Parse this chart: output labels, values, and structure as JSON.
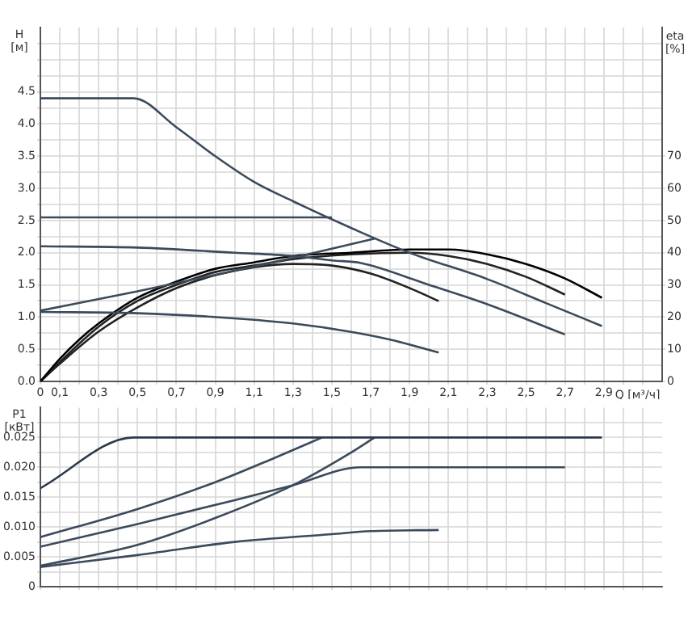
{
  "chart_data": [
    {
      "type": "line",
      "xlabel": "Q [м³/ч]",
      "ylabel": "H [м]",
      "y2label": "eta [%]",
      "grid": true,
      "legend": false,
      "xlim": [
        0,
        3.2
      ],
      "xticks": [
        {
          "value": 0,
          "label": "0"
        },
        {
          "value": 0.1,
          "label": "0,1"
        },
        {
          "value": 0.2,
          "label": null
        },
        {
          "value": 0.3,
          "label": "0,3"
        },
        {
          "value": 0.4,
          "label": null
        },
        {
          "value": 0.5,
          "label": "0,5"
        },
        {
          "value": 0.6,
          "label": null
        },
        {
          "value": 0.7,
          "label": "0,7"
        },
        {
          "value": 0.8,
          "label": null
        },
        {
          "value": 0.9,
          "label": "0,9"
        },
        {
          "value": 1.0,
          "label": null
        },
        {
          "value": 1.1,
          "label": "1,1"
        },
        {
          "value": 1.2,
          "label": null
        },
        {
          "value": 1.3,
          "label": "1,3"
        },
        {
          "value": 1.4,
          "label": null
        },
        {
          "value": 1.5,
          "label": "1,5"
        },
        {
          "value": 1.6,
          "label": null
        },
        {
          "value": 1.7,
          "label": "1,7"
        },
        {
          "value": 1.8,
          "label": null
        },
        {
          "value": 1.9,
          "label": "1,9"
        },
        {
          "value": 2.0,
          "label": null
        },
        {
          "value": 2.1,
          "label": "2,1"
        },
        {
          "value": 2.2,
          "label": null
        },
        {
          "value": 2.3,
          "label": "2,3"
        },
        {
          "value": 2.4,
          "label": null
        },
        {
          "value": 2.5,
          "label": "2,5"
        },
        {
          "value": 2.6,
          "label": null
        },
        {
          "value": 2.7,
          "label": "2,7"
        },
        {
          "value": 2.8,
          "label": null
        },
        {
          "value": 2.9,
          "label": "2,9"
        },
        {
          "value": 3.0,
          "label": null
        },
        {
          "value": 3.1,
          "label": null
        }
      ],
      "ylim": [
        0,
        5.5
      ],
      "yticks": [
        {
          "value": 0,
          "label": "0.0"
        },
        {
          "value": 0.25,
          "label": null
        },
        {
          "value": 0.5,
          "label": "0.5"
        },
        {
          "value": 0.75,
          "label": null
        },
        {
          "value": 1.0,
          "label": "1.0"
        },
        {
          "value": 1.25,
          "label": null
        },
        {
          "value": 1.5,
          "label": "1.5"
        },
        {
          "value": 1.75,
          "label": null
        },
        {
          "value": 2.0,
          "label": "2.0"
        },
        {
          "value": 2.25,
          "label": null
        },
        {
          "value": 2.5,
          "label": "2.5"
        },
        {
          "value": 2.75,
          "label": null
        },
        {
          "value": 3.0,
          "label": "3.0"
        },
        {
          "value": 3.25,
          "label": null
        },
        {
          "value": 3.5,
          "label": "3.5"
        },
        {
          "value": 3.75,
          "label": null
        },
        {
          "value": 4.0,
          "label": "4.0"
        },
        {
          "value": 4.25,
          "label": null
        },
        {
          "value": 4.5,
          "label": "4.5"
        },
        {
          "value": 4.75,
          "label": null
        },
        {
          "value": 5.0,
          "label": null
        },
        {
          "value": 5.25,
          "label": null
        }
      ],
      "y2lim": [
        0,
        110
      ],
      "y2ticks": [
        0,
        10,
        20,
        30,
        40,
        50,
        60,
        70
      ],
      "series": [
        {
          "color": "#3b4a5c",
          "x": [
            0,
            0.48,
            0.7,
            0.9,
            1.1,
            1.3,
            1.61,
            1.9,
            2.3,
            2.6,
            2.89
          ],
          "values": [
            4.4,
            4.4,
            3.95,
            3.5,
            3.1,
            2.8,
            2.37,
            2.0,
            1.59,
            1.22,
            0.86
          ]
        },
        {
          "color": "#3b4a5c",
          "x": [
            0,
            1.5
          ],
          "values": [
            2.55,
            2.55
          ]
        },
        {
          "color": "#3b4a5c",
          "x": [
            0,
            0.5,
            1.0,
            1.3,
            1.5,
            1.65,
            2.0,
            2.3,
            2.7
          ],
          "values": [
            2.1,
            2.08,
            2.0,
            1.95,
            1.88,
            1.84,
            1.5,
            1.2,
            0.73
          ]
        },
        {
          "color": "#3b4a5c",
          "x": [
            0,
            0.5,
            1.0,
            1.3,
            1.6,
            1.8,
            2.05
          ],
          "values": [
            1.08,
            1.06,
            0.98,
            0.9,
            0.77,
            0.65,
            0.45
          ]
        },
        {
          "color": "#3b4a5c",
          "x": [
            0,
            0.5,
            1.0,
            1.3,
            1.72
          ],
          "values": [
            1.1,
            1.4,
            1.72,
            1.92,
            2.22
          ]
        },
        {
          "color": "#000000",
          "axis": "y2",
          "x": [
            0,
            0.1,
            0.2,
            0.3,
            0.5,
            0.7,
            0.9,
            1.1,
            1.3,
            1.6,
            1.9,
            2.1,
            2.3,
            2.5,
            2.7,
            2.89
          ],
          "values": [
            0,
            7,
            13,
            18,
            26,
            31,
            35,
            37,
            39,
            40,
            41,
            41,
            39.5,
            36.5,
            32,
            26
          ]
        },
        {
          "color": "#222222",
          "axis": "y2",
          "x": [
            0,
            0.1,
            0.3,
            0.5,
            0.7,
            0.9,
            1.1,
            1.3,
            1.6,
            1.9,
            2.1,
            2.3,
            2.5,
            2.7
          ],
          "values": [
            0,
            6,
            17,
            25,
            30,
            34,
            36,
            38,
            39.5,
            40,
            39,
            36.5,
            32.5,
            27
          ]
        },
        {
          "color": "#222222",
          "axis": "y2",
          "x": [
            0,
            0.1,
            0.3,
            0.5,
            0.7,
            0.9,
            1.1,
            1.3,
            1.5,
            1.7,
            1.9,
            2.05
          ],
          "values": [
            0,
            5.5,
            15.5,
            23,
            29,
            33,
            35.5,
            36.5,
            36,
            33.5,
            29,
            25
          ]
        }
      ]
    },
    {
      "type": "line",
      "ylabel": "P1 [кВт]",
      "grid": true,
      "legend": false,
      "tick_labels": "y",
      "xlim": [
        0,
        3.2
      ],
      "xticks": [
        0,
        0.1,
        0.2,
        0.3,
        0.4,
        0.5,
        0.6,
        0.7,
        0.8,
        0.9,
        1.0,
        1.1,
        1.2,
        1.3,
        1.4,
        1.5,
        1.6,
        1.7,
        1.8,
        1.9,
        2.0,
        2.1,
        2.2,
        2.3,
        2.4,
        2.5,
        2.6,
        2.7,
        2.8,
        2.9,
        3.0,
        3.1
      ],
      "ylim": [
        0,
        0.03
      ],
      "yticks": [
        {
          "value": 0,
          "label": "0"
        },
        {
          "value": 0.0025,
          "label": null
        },
        {
          "value": 0.005,
          "label": "0.005"
        },
        {
          "value": 0.0075,
          "label": null
        },
        {
          "value": 0.01,
          "label": "0.010"
        },
        {
          "value": 0.0125,
          "label": null
        },
        {
          "value": 0.015,
          "label": "0.015"
        },
        {
          "value": 0.0175,
          "label": null
        },
        {
          "value": 0.02,
          "label": "0.020"
        },
        {
          "value": 0.0225,
          "label": null
        },
        {
          "value": 0.025,
          "label": "0.025"
        },
        {
          "value": 0.0275,
          "label": null
        }
      ],
      "series": [
        {
          "color": "#2a3a4c",
          "x": [
            0,
            0.48,
            2.89
          ],
          "values": [
            0.0165,
            0.025,
            0.025
          ]
        },
        {
          "color": "#3b4a5c",
          "x": [
            0,
            0.5,
            0.9,
            1.2,
            1.45
          ],
          "values": [
            0.0083,
            0.013,
            0.0175,
            0.0215,
            0.025
          ]
        },
        {
          "color": "#3b4a5c",
          "x": [
            0,
            0.5,
            1.0,
            1.3,
            1.65,
            2.7
          ],
          "values": [
            0.0067,
            0.0105,
            0.0145,
            0.017,
            0.02,
            0.02
          ]
        },
        {
          "color": "#3b4a5c",
          "x": [
            0,
            0.5,
            0.9,
            1.3,
            1.6,
            1.72
          ],
          "values": [
            0.0035,
            0.007,
            0.0115,
            0.017,
            0.0225,
            0.025
          ]
        },
        {
          "color": "#3b4a5c",
          "x": [
            0,
            0.5,
            1.0,
            1.5,
            1.7,
            2.05
          ],
          "values": [
            0.0033,
            0.0053,
            0.0075,
            0.0088,
            0.0093,
            0.0095
          ]
        }
      ]
    }
  ]
}
